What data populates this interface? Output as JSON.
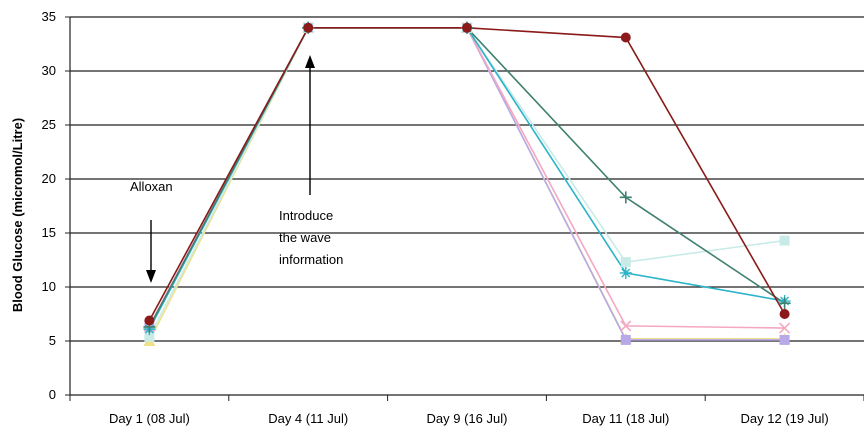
{
  "chart_data": {
    "type": "line",
    "title": "",
    "xlabel": "",
    "ylabel": "Blood Glucose (micromol/Litre)",
    "ylim": [
      0,
      35
    ],
    "yticks": [
      0,
      5,
      10,
      15,
      20,
      25,
      30,
      35
    ],
    "grid": true,
    "legend": "none",
    "categories": [
      "Day 1 (08 Jul)",
      "Day 4 (11 Jul)",
      "Day 9 (16 Jul)",
      "Day 11 (18 Jul)",
      "Day 12 (19 Jul)"
    ],
    "series": [
      {
        "color": "#8b1a1a",
        "marker": "circle",
        "values": [
          6.9,
          34,
          34,
          33.1,
          7.5
        ]
      },
      {
        "color": "#3f8070",
        "marker": "plus",
        "values": [
          6.3,
          34,
          34,
          18.3,
          8.5
        ]
      },
      {
        "color": "#2bb3c8",
        "marker": "star",
        "values": [
          6.1,
          34,
          34,
          11.3,
          8.7
        ]
      },
      {
        "color": "#c8ebe8",
        "marker": "square",
        "values": [
          5.4,
          34,
          34,
          12.3,
          14.3
        ]
      },
      {
        "color": "#f4a7c2",
        "marker": "x",
        "values": [
          6.4,
          34,
          34,
          6.4,
          6.2
        ]
      },
      {
        "color": "#b7a9e8",
        "marker": "square",
        "values": [
          6.2,
          34,
          34,
          5.1,
          5.1
        ]
      },
      {
        "color": "#f0e08a",
        "marker": "triangle",
        "values": [
          5.0,
          34,
          34,
          5.2,
          5.2
        ]
      }
    ],
    "annotations": [
      {
        "label": "Alloxan"
      },
      {
        "label": "Introduce the wave information",
        "lines": [
          "Introduce",
          "the wave",
          "information"
        ]
      }
    ]
  }
}
